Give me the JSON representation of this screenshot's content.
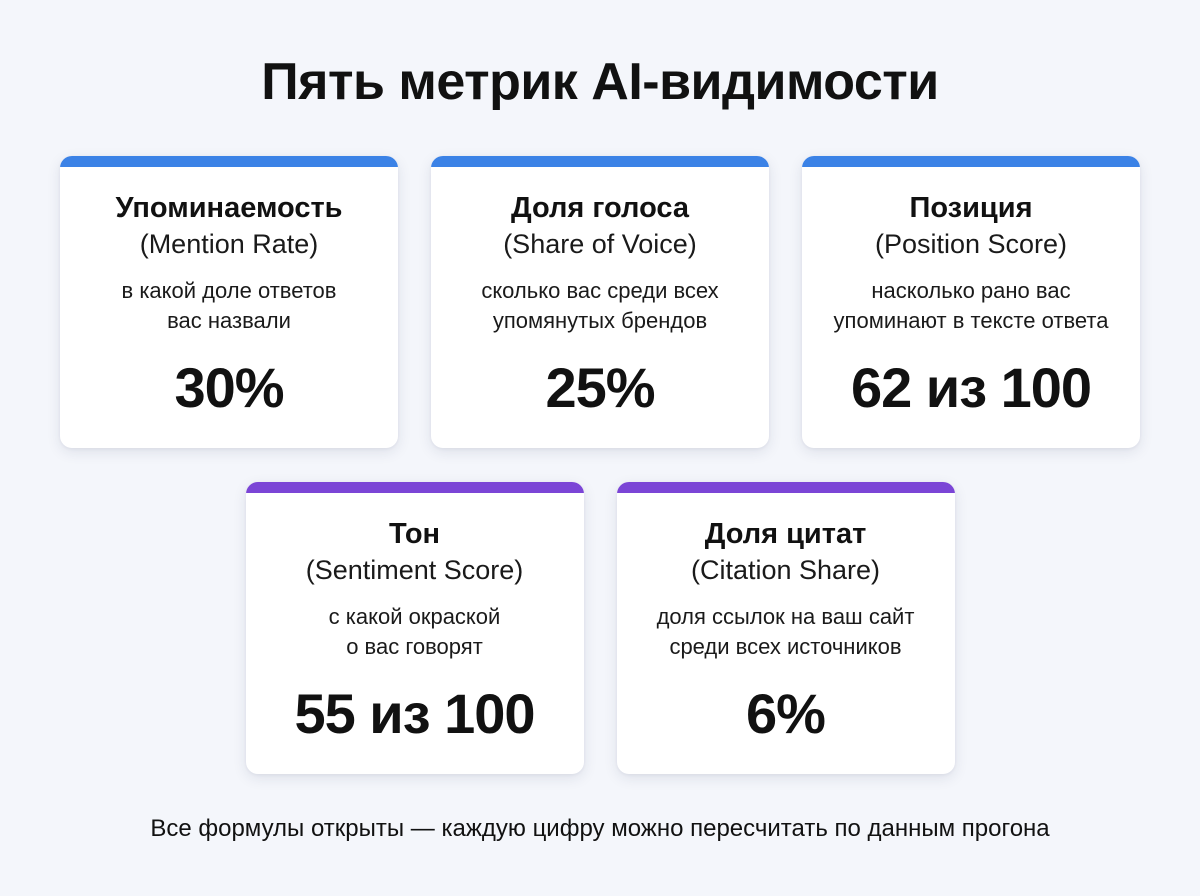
{
  "title": "Пять метрик AI-видимости",
  "colors": {
    "background": "#f4f6fb",
    "accent_blue": "#3b82e6",
    "accent_purple": "#7b45d6",
    "card": "#ffffff"
  },
  "cards": [
    {
      "title": "Упоминаемость",
      "subtitle": "(Mention Rate)",
      "desc_line1": "в какой доле ответов",
      "desc_line2": "вас назвали",
      "value": "30%",
      "accent": "blue"
    },
    {
      "title": "Доля голоса",
      "subtitle": "(Share of Voice)",
      "desc_line1": "сколько вас среди всех",
      "desc_line2": "упомянутых брендов",
      "value": "25%",
      "accent": "blue"
    },
    {
      "title": "Позиция",
      "subtitle": "(Position Score)",
      "desc_line1": "насколько рано вас",
      "desc_line2": "упоминают в тексте ответа",
      "value": "62 из 100",
      "accent": "blue"
    },
    {
      "title": "Тон",
      "subtitle": "(Sentiment Score)",
      "desc_line1": "с какой окраской",
      "desc_line2": "о вас говорят",
      "value": "55 из 100",
      "accent": "purple"
    },
    {
      "title": "Доля цитат",
      "subtitle": "(Citation Share)",
      "desc_line1": "доля ссылок на ваш сайт",
      "desc_line2": "среди всех источников",
      "value": "6%",
      "accent": "purple"
    }
  ],
  "footer": "Все формулы открыты — каждую цифру можно пересчитать по данным прогона"
}
